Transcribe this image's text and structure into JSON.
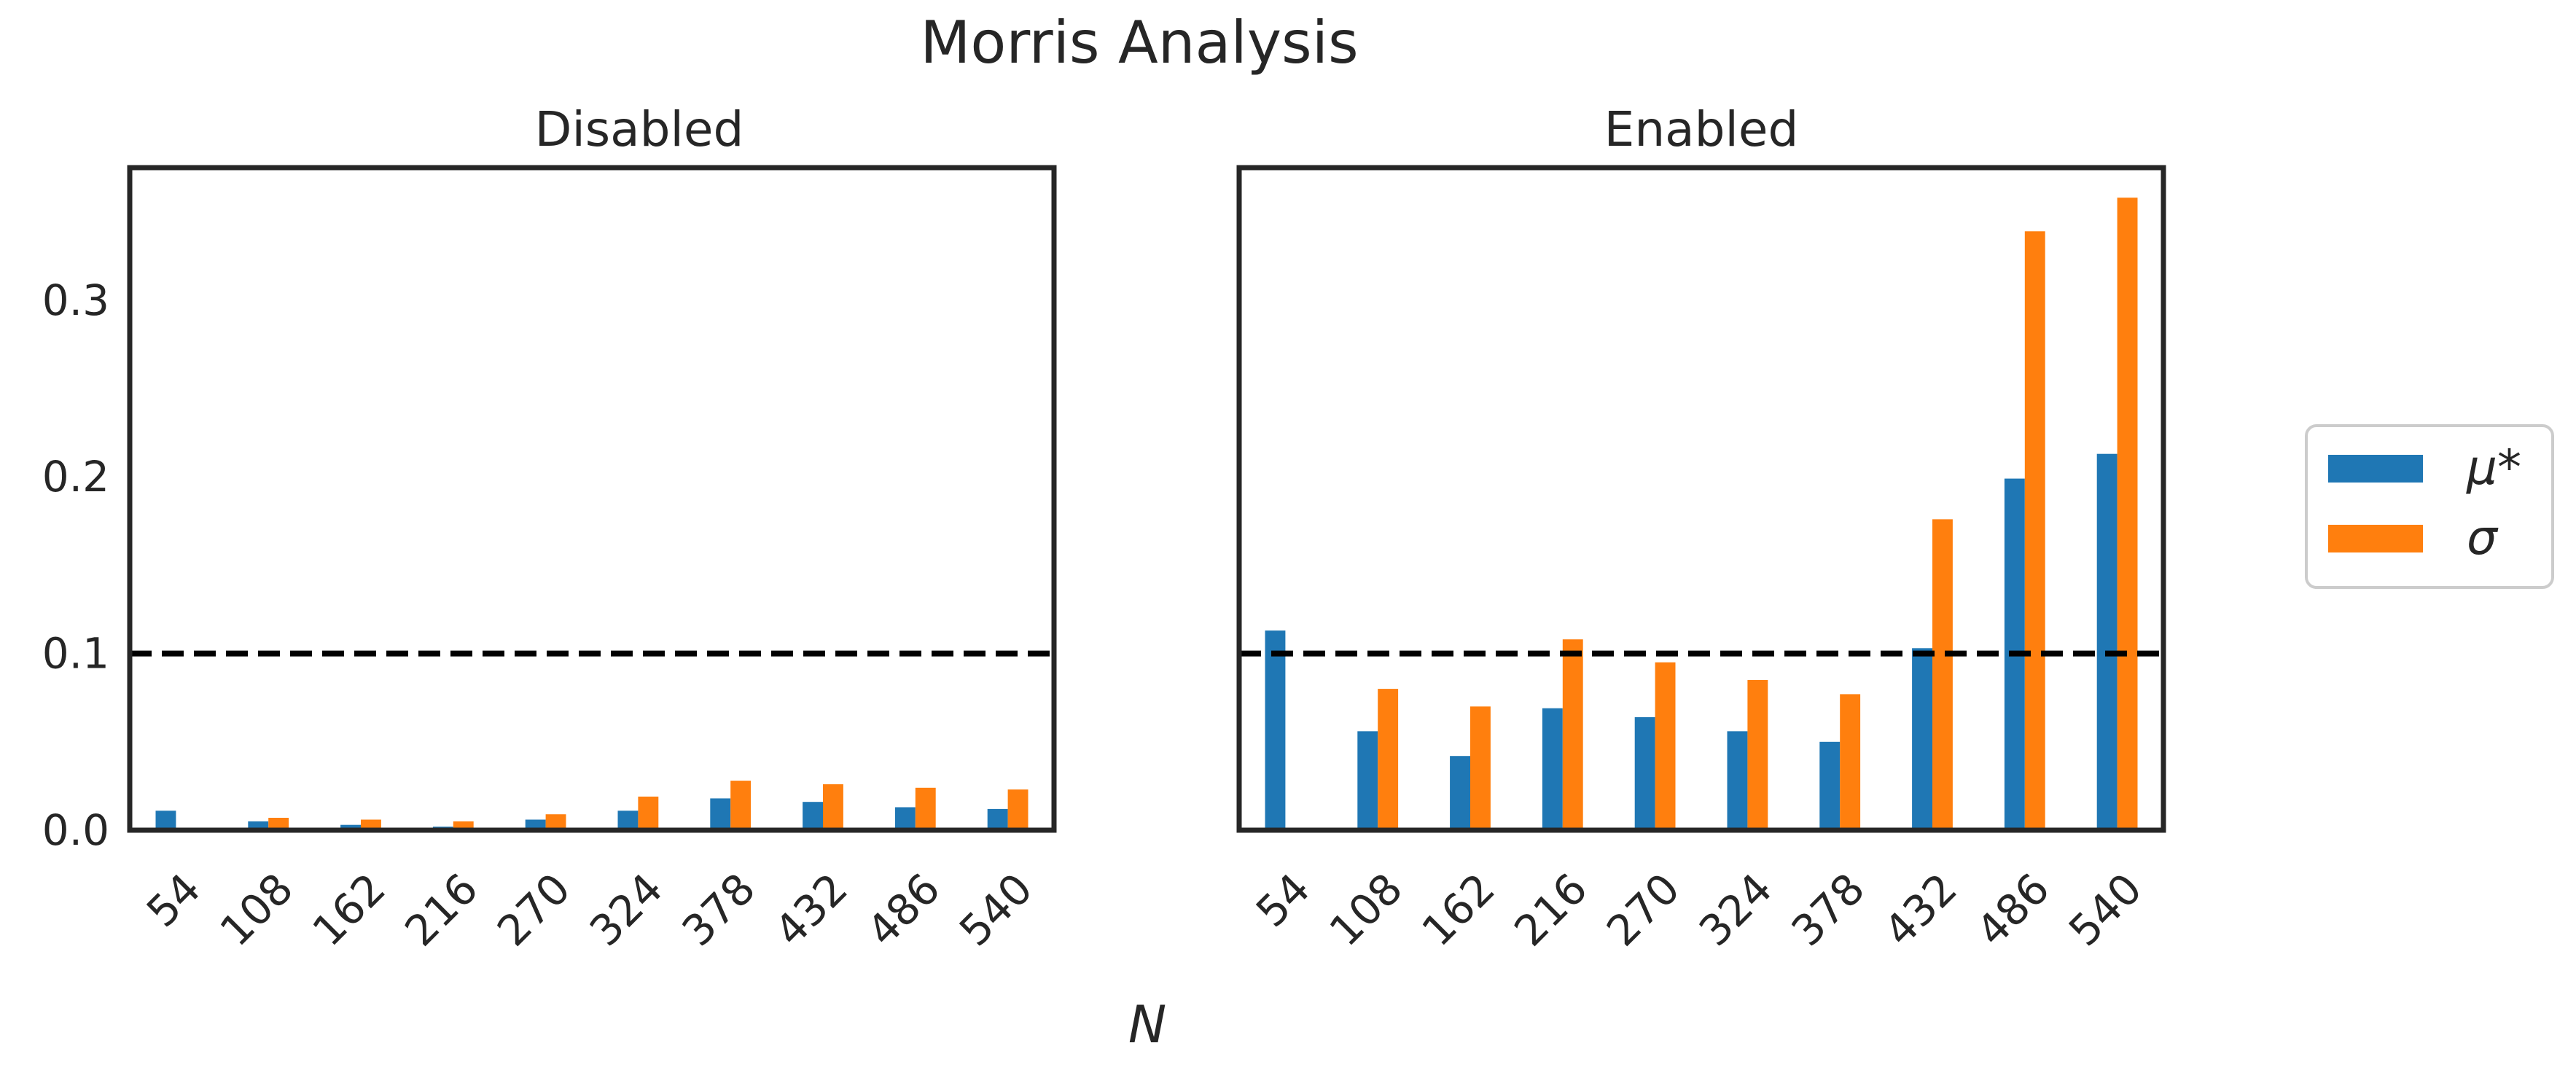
{
  "chart_data": {
    "title": "Morris Analysis",
    "type": "bar",
    "xlabel": "N",
    "shared_y": true,
    "ylim": [
      0,
      0.375
    ],
    "yticks": [
      0.0,
      0.1,
      0.2,
      0.3
    ],
    "ytick_labels": [
      "0.0",
      "0.1",
      "0.2",
      "0.3"
    ],
    "threshold": 0.1,
    "grid": false,
    "legend": {
      "placement": "right-outside",
      "entries": [
        {
          "label": "μ*",
          "color": "#1f77b4"
        },
        {
          "label": "σ",
          "color": "#ff7f0e"
        }
      ]
    },
    "panels": [
      {
        "title": "Disabled",
        "categories": [
          "54",
          "108",
          "162",
          "216",
          "270",
          "324",
          "378",
          "432",
          "486",
          "540"
        ],
        "series": [
          {
            "name": "μ*",
            "color": "#1f77b4",
            "values": [
              0.011,
              0.005,
              0.003,
              0.002,
              0.006,
              0.011,
              0.018,
              0.016,
              0.013,
              0.012
            ]
          },
          {
            "name": "σ",
            "color": "#ff7f0e",
            "values": [
              0.0,
              0.007,
              0.006,
              0.005,
              0.009,
              0.019,
              0.028,
              0.026,
              0.024,
              0.023
            ]
          }
        ]
      },
      {
        "title": "Enabled",
        "categories": [
          "54",
          "108",
          "162",
          "216",
          "270",
          "324",
          "378",
          "432",
          "486",
          "540"
        ],
        "series": [
          {
            "name": "μ*",
            "color": "#1f77b4",
            "values": [
              0.113,
              0.056,
              0.042,
              0.069,
              0.064,
              0.056,
              0.05,
              0.103,
              0.199,
              0.213
            ]
          },
          {
            "name": "σ",
            "color": "#ff7f0e",
            "values": [
              0.0,
              0.08,
              0.07,
              0.108,
              0.095,
              0.085,
              0.077,
              0.176,
              0.339,
              0.358
            ]
          }
        ]
      }
    ]
  }
}
